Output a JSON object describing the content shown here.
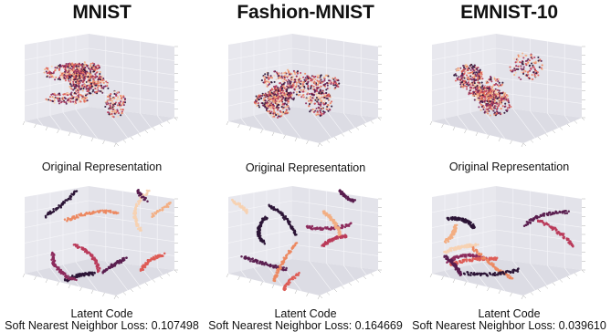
{
  "columns": [
    {
      "title": "MNIST",
      "original_caption": "Original Representation",
      "latent_caption": "Latent Code",
      "loss_label": "Soft Nearest Neighbor Loss: 0.107498"
    },
    {
      "title": "Fashion-MNIST",
      "original_caption": "Original Representation",
      "latent_caption": "Latent Code",
      "loss_label": "Soft Nearest Neighbor Loss: 0.164669"
    },
    {
      "title": "EMNIST-10",
      "original_caption": "Original Representation",
      "latent_caption": "Latent Code",
      "loss_label": "Soft Nearest Neighbor Loss: 0.039610"
    }
  ],
  "chart_data": [
    {
      "type": "scatter",
      "dataset": "MNIST",
      "representation": "original",
      "projection": "3d",
      "loss": null
    },
    {
      "type": "scatter",
      "dataset": "Fashion-MNIST",
      "representation": "original",
      "projection": "3d",
      "loss": null
    },
    {
      "type": "scatter",
      "dataset": "EMNIST-10",
      "representation": "original",
      "projection": "3d",
      "loss": null
    },
    {
      "type": "scatter",
      "dataset": "MNIST",
      "representation": "latent",
      "projection": "3d",
      "loss": 0.107498
    },
    {
      "type": "scatter",
      "dataset": "Fashion-MNIST",
      "representation": "latent",
      "projection": "3d",
      "loss": 0.164669
    },
    {
      "type": "scatter",
      "dataset": "EMNIST-10",
      "representation": "latent",
      "projection": "3d",
      "loss": 0.03961
    }
  ],
  "colors": {
    "pane_bg": "#e8e8ee",
    "pane_grid": "#f7f7fa",
    "palette": [
      "#2b1436",
      "#5a1e4f",
      "#8c2a5c",
      "#b93a5a",
      "#dd5c55",
      "#ec8860",
      "#f2ae83",
      "#f7d2b2"
    ]
  }
}
